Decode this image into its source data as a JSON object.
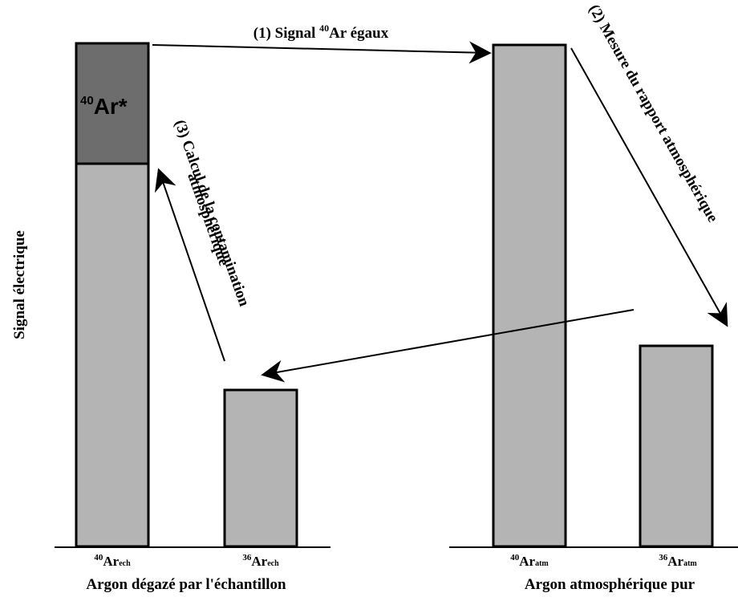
{
  "y_axis_label": "Signal électrique",
  "groups": {
    "sample": {
      "label": "Argon dégazé par l'échantillon"
    },
    "atmosphere": {
      "label": "Argon atmosphérique pur"
    }
  },
  "bars": {
    "ar40_sample": {
      "mass": "40",
      "symbol": "Ar",
      "sub": "ech"
    },
    "ar36_sample": {
      "mass": "36",
      "symbol": "Ar",
      "sub": "ech"
    },
    "ar40_atm": {
      "mass": "40",
      "symbol": "Ar",
      "sub": "atm"
    },
    "ar36_atm": {
      "mass": "36",
      "symbol": "Ar",
      "sub": "atm"
    }
  },
  "radiogenic": {
    "mass": "40",
    "text": "Ar*"
  },
  "steps": {
    "step1": {
      "prefix": "(1) Signal ",
      "mass": "40",
      "suffix": "Ar égaux"
    },
    "step2": {
      "text": "(2) Mesure du rapport atmosphérique"
    },
    "step3": {
      "line1": "(3) Calcul de la contamination",
      "line2": "atmosphérique"
    }
  },
  "colors": {
    "bar_fill": "#b4b4b4",
    "radiogenic_fill": "#6d6d6d",
    "stroke": "#000000"
  }
}
